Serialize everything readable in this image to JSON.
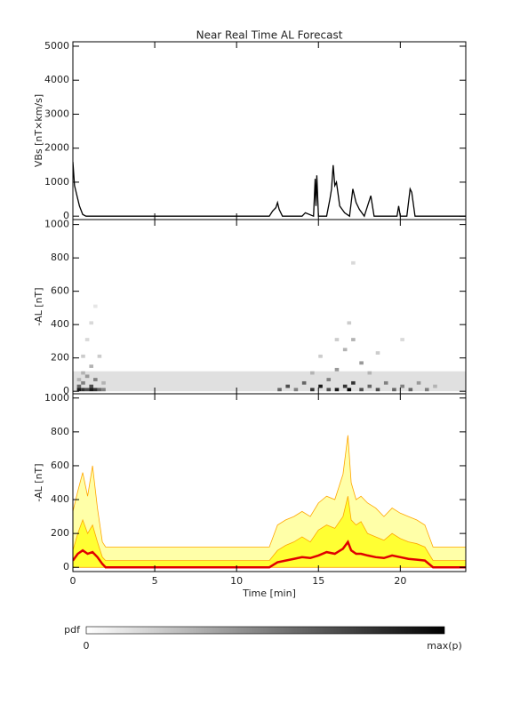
{
  "chart_data": [
    {
      "type": "line",
      "title": "Near Real Time AL Forecast",
      "ylabel": "VBs [nT×km/s]",
      "color": "#000000",
      "xlim": [
        0,
        24
      ],
      "ylim": [
        -100,
        5130
      ],
      "yticks": [
        0,
        1000,
        2000,
        3000,
        4000,
        5000
      ],
      "x": [
        0,
        0.1,
        0.2,
        0.3,
        0.4,
        0.6,
        0.8,
        12,
        12.2,
        12.4,
        12.5,
        12.6,
        12.8,
        14,
        14.2,
        14.7,
        14.8,
        14.85,
        14.9,
        15,
        15.5,
        15.7,
        15.8,
        15.9,
        16,
        16.1,
        16.3,
        16.6,
        16.9,
        17.1,
        17.3,
        17.5,
        17.8,
        18,
        18.2,
        18.4,
        19,
        19.8,
        19.9,
        20,
        20.4,
        20.6,
        20.7,
        20.9,
        24
      ],
      "values": [
        1600,
        900,
        700,
        500,
        300,
        50,
        0,
        0,
        150,
        250,
        400,
        200,
        0,
        0,
        100,
        0,
        1100,
        300,
        1200,
        0,
        0,
        500,
        800,
        1500,
        900,
        1000,
        300,
        100,
        0,
        800,
        400,
        200,
        0,
        300,
        600,
        0,
        0,
        0,
        300,
        0,
        0,
        800,
        700,
        0,
        0
      ]
    },
    {
      "type": "heatmap",
      "ylabel": "-AL [nT]",
      "xlim": [
        0,
        24
      ],
      "ylim": [
        -15,
        1030
      ],
      "yticks": [
        0,
        200,
        400,
        600,
        800,
        1000
      ],
      "dx": 0.25,
      "dy": 20,
      "band": {
        "x": [
          0,
          24
        ],
        "y": [
          0,
          120
        ],
        "p": 0.12
      },
      "cells": {
        "x": [
          0.25,
          0.25,
          0.25,
          0.5,
          0.5,
          0.5,
          0.5,
          0.75,
          0.75,
          0.75,
          1.0,
          1.0,
          1.0,
          1.0,
          1.25,
          1.25,
          1.25,
          1.5,
          1.5,
          1.75,
          1.75,
          12.5,
          13,
          13.5,
          14,
          14.5,
          14.5,
          15,
          15,
          15.5,
          15.5,
          16,
          16,
          16,
          16.5,
          16.5,
          16.75,
          16.75,
          17,
          17,
          17,
          17.5,
          17.5,
          18,
          18,
          18.5,
          18.5,
          19,
          19.5,
          20,
          20,
          20.5,
          21,
          21.5,
          22
        ],
        "y": [
          0,
          20,
          60,
          0,
          40,
          100,
          200,
          0,
          80,
          300,
          0,
          20,
          140,
          400,
          0,
          60,
          500,
          0,
          200,
          0,
          40,
          0,
          20,
          0,
          40,
          0,
          100,
          20,
          200,
          0,
          60,
          0,
          120,
          300,
          20,
          240,
          0,
          400,
          40,
          760,
          300,
          0,
          160,
          20,
          100,
          0,
          220,
          40,
          0,
          20,
          300,
          0,
          40,
          0,
          20
        ],
        "p": [
          0.9,
          0.6,
          0.3,
          0.8,
          0.5,
          0.3,
          0.2,
          0.7,
          0.4,
          0.15,
          0.9,
          0.7,
          0.3,
          0.15,
          0.8,
          0.5,
          0.1,
          0.6,
          0.2,
          0.5,
          0.3,
          0.6,
          0.7,
          0.5,
          0.6,
          0.8,
          0.3,
          0.9,
          0.2,
          0.7,
          0.5,
          0.9,
          0.4,
          0.2,
          0.8,
          0.3,
          1.0,
          0.2,
          0.8,
          0.15,
          0.3,
          0.7,
          0.4,
          0.6,
          0.3,
          0.7,
          0.2,
          0.5,
          0.6,
          0.5,
          0.15,
          0.6,
          0.4,
          0.5,
          0.3
        ]
      },
      "colorbar": {
        "label": "pdf",
        "min_label": "0",
        "max_label": "max(p)"
      }
    },
    {
      "type": "area",
      "ylabel": "-AL [nT]",
      "xlabel": "Time [min]",
      "xlim": [
        0,
        24
      ],
      "ylim": [
        -25,
        1025
      ],
      "xticks": [
        0,
        5,
        10,
        15,
        20
      ],
      "yticks": [
        0,
        200,
        400,
        600,
        800,
        1000
      ],
      "x": [
        0,
        0.3,
        0.6,
        0.9,
        1.2,
        1.5,
        1.8,
        2.0,
        2.1,
        11.9,
        12.0,
        12.5,
        13,
        13.5,
        14,
        14.5,
        15,
        15.5,
        16,
        16.5,
        16.8,
        17,
        17.3,
        17.6,
        18,
        18.5,
        19,
        19.5,
        20,
        20.5,
        21,
        21.5,
        22,
        22.1,
        22.2,
        24
      ],
      "series": [
        {
          "color": "#ffa500",
          "fill": "#ffffa8",
          "width": 0.8,
          "values": [
            330,
            450,
            560,
            420,
            600,
            350,
            150,
            120,
            120,
            120,
            120,
            250,
            280,
            300,
            330,
            300,
            380,
            420,
            400,
            550,
            780,
            500,
            400,
            420,
            380,
            350,
            300,
            350,
            320,
            300,
            280,
            250,
            120,
            120,
            120,
            120
          ]
        },
        {
          "color": "#ffa500",
          "fill": "#ffff33",
          "width": 0.8,
          "values": [
            100,
            200,
            280,
            200,
            250,
            150,
            60,
            40,
            40,
            40,
            40,
            100,
            130,
            150,
            180,
            150,
            220,
            250,
            230,
            300,
            420,
            280,
            250,
            270,
            200,
            180,
            160,
            200,
            170,
            150,
            140,
            120,
            40,
            40,
            40,
            40
          ]
        },
        {
          "color": "#e00000",
          "fill": null,
          "width": 2.5,
          "values": [
            40,
            80,
            100,
            80,
            90,
            60,
            20,
            0,
            0,
            0,
            0,
            30,
            40,
            50,
            60,
            55,
            70,
            90,
            80,
            110,
            150,
            100,
            80,
            80,
            70,
            60,
            55,
            70,
            60,
            50,
            45,
            40,
            0,
            0,
            0,
            0
          ]
        }
      ]
    }
  ]
}
